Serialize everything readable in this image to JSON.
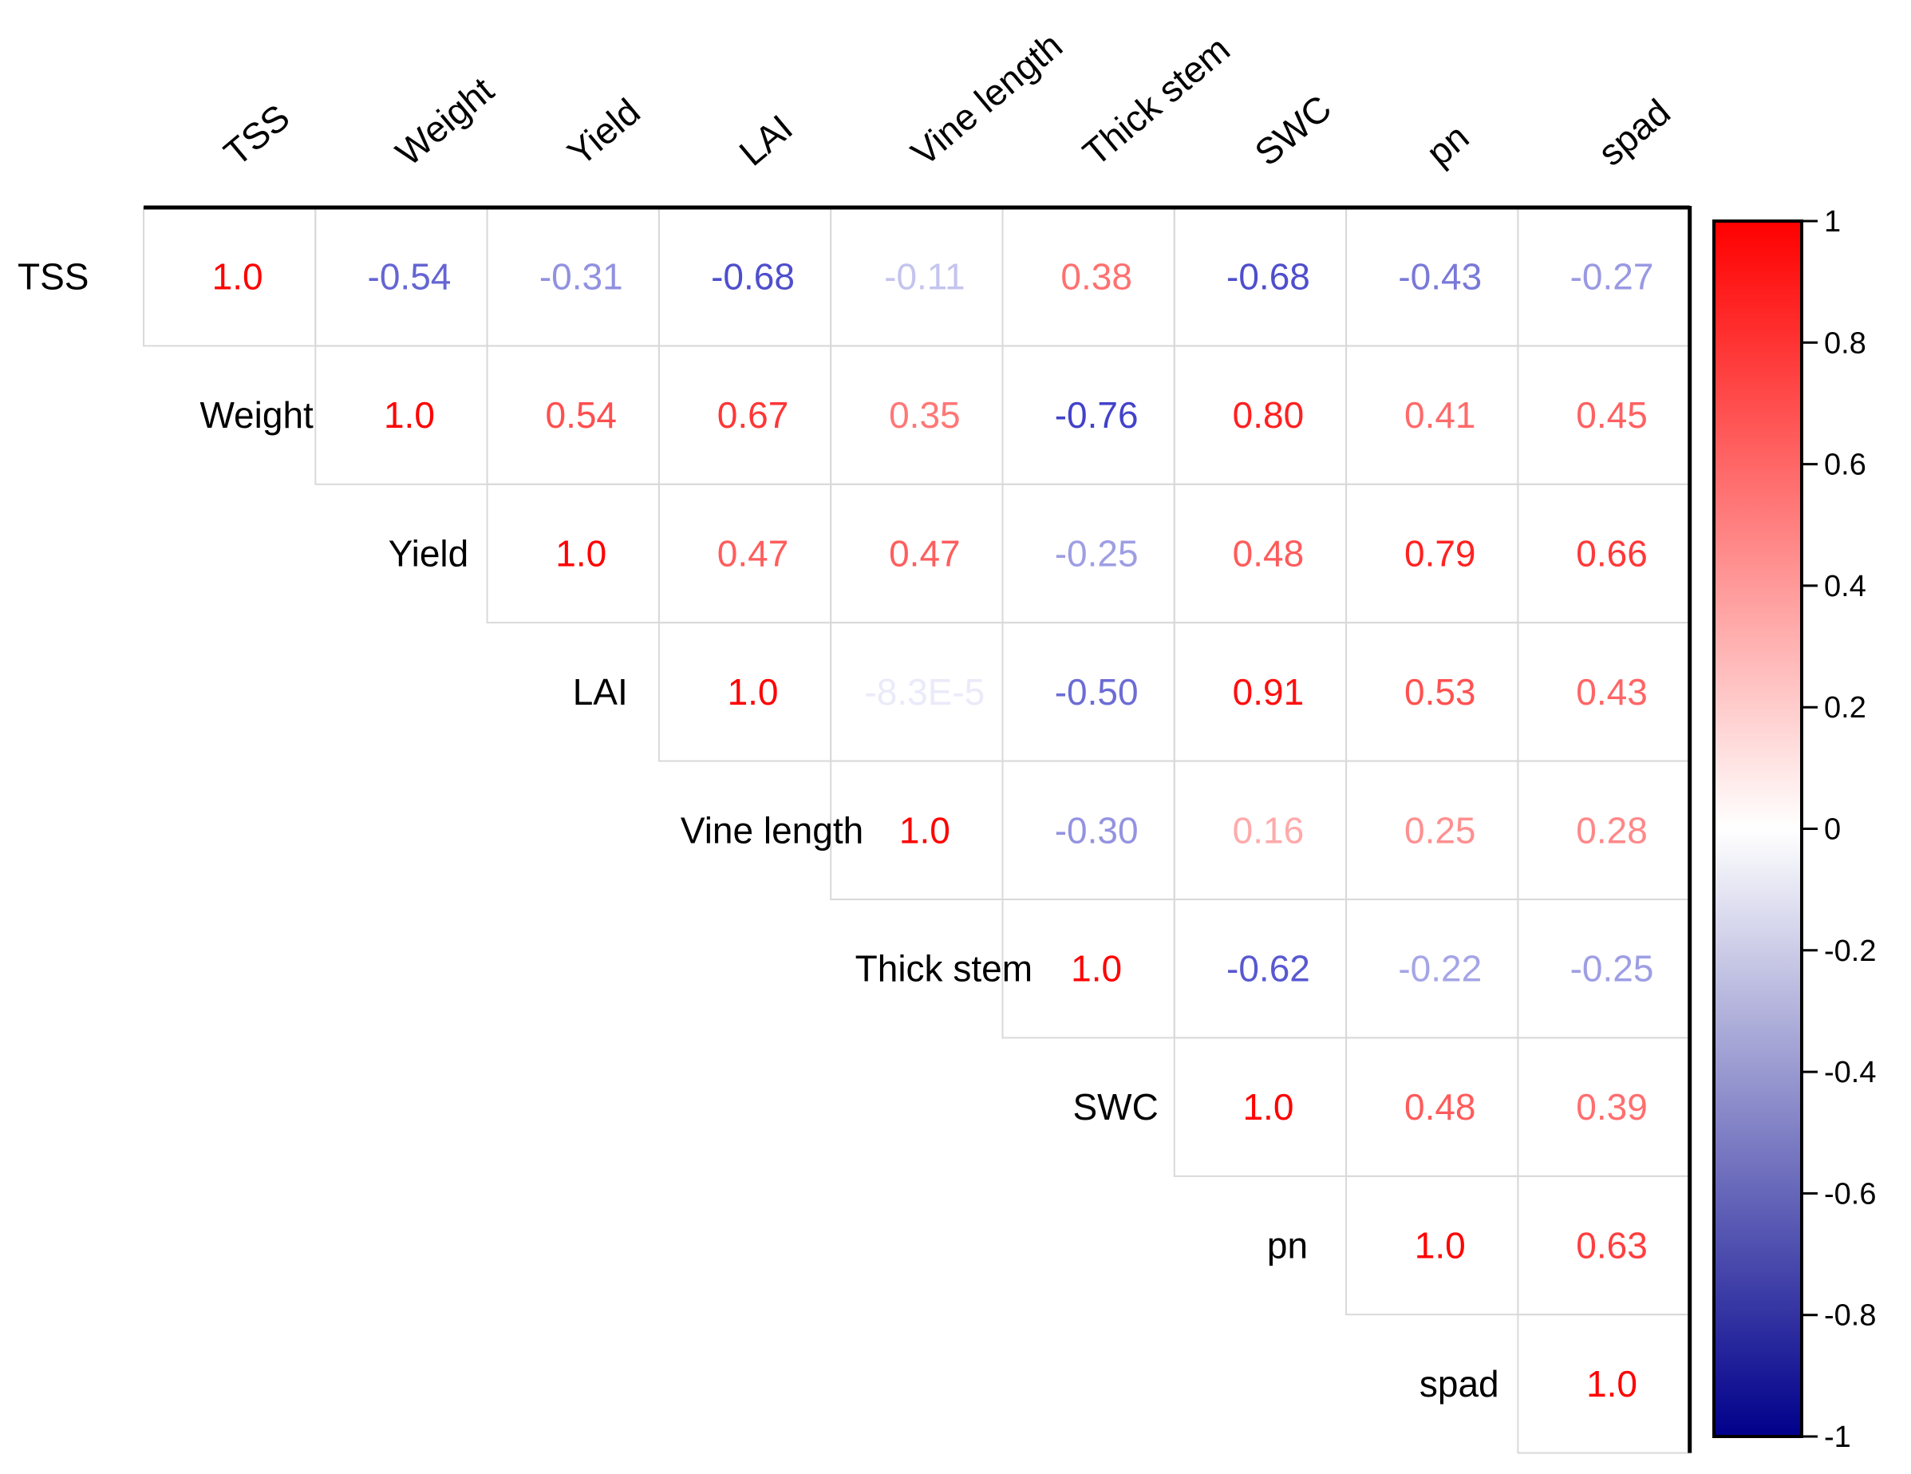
{
  "chart_data": {
    "type": "heatmap",
    "subtype": "correlation-matrix-upper-triangle",
    "variables": [
      "TSS",
      "Weight",
      "Yield",
      "LAI",
      "Vine length",
      "Thick stem",
      "SWC",
      "pn",
      "spad"
    ],
    "matrix": [
      [
        1.0,
        -0.54,
        -0.31,
        -0.68,
        -0.11,
        0.38,
        -0.68,
        -0.43,
        -0.27
      ],
      [
        null,
        1.0,
        0.54,
        0.67,
        0.35,
        -0.76,
        0.8,
        0.41,
        0.45
      ],
      [
        null,
        null,
        1.0,
        0.47,
        0.47,
        -0.25,
        0.48,
        0.79,
        0.66
      ],
      [
        null,
        null,
        null,
        1.0,
        -8.3e-05,
        -0.5,
        0.91,
        0.53,
        0.43
      ],
      [
        null,
        null,
        null,
        null,
        1.0,
        -0.3,
        0.16,
        0.25,
        0.28
      ],
      [
        null,
        null,
        null,
        null,
        null,
        1.0,
        -0.62,
        -0.22,
        -0.25
      ],
      [
        null,
        null,
        null,
        null,
        null,
        null,
        1.0,
        0.48,
        0.39
      ],
      [
        null,
        null,
        null,
        null,
        null,
        null,
        null,
        1.0,
        0.63
      ],
      [
        null,
        null,
        null,
        null,
        null,
        null,
        null,
        null,
        1.0
      ]
    ],
    "labels": [
      [
        "1.0",
        "-0.54",
        "-0.31",
        "-0.68",
        "-0.11",
        "0.38",
        "-0.68",
        "-0.43",
        "-0.27"
      ],
      [
        null,
        "1.0",
        "0.54",
        "0.67",
        "0.35",
        "-0.76",
        "0.80",
        "0.41",
        "0.45"
      ],
      [
        null,
        null,
        "1.0",
        "0.47",
        "0.47",
        "-0.25",
        "0.48",
        "0.79",
        "0.66"
      ],
      [
        null,
        null,
        null,
        "1.0",
        "-8.3E-5",
        "-0.50",
        "0.91",
        "0.53",
        "0.43"
      ],
      [
        null,
        null,
        null,
        null,
        "1.0",
        "-0.30",
        "0.16",
        "0.25",
        "0.28"
      ],
      [
        null,
        null,
        null,
        null,
        null,
        "1.0",
        "-0.62",
        "-0.22",
        "-0.25"
      ],
      [
        null,
        null,
        null,
        null,
        null,
        null,
        "1.0",
        "0.48",
        "0.39"
      ],
      [
        null,
        null,
        null,
        null,
        null,
        null,
        null,
        "1.0",
        "0.63"
      ],
      [
        null,
        null,
        null,
        null,
        null,
        null,
        null,
        null,
        "1.0"
      ]
    ],
    "colorbar": {
      "range": [
        -1,
        1
      ],
      "ticks": [
        1,
        0.8,
        0.6,
        0.4,
        0.2,
        0,
        -0.2,
        -0.4,
        -0.6,
        -0.8,
        -1
      ],
      "tick_labels": [
        "1",
        "0.8",
        "0.6",
        "0.4",
        "0.2",
        "0",
        "-0.2",
        "-0.4",
        "-0.6",
        "-0.8",
        "-1"
      ],
      "color_high": "#ff0000",
      "color_mid": "#ffffff",
      "color_low": "#00008b"
    },
    "colors": {
      "text_positive": "#ff0000",
      "text_negative": "#2020c0",
      "grid": "#d9d9d9",
      "axis": "#000000"
    }
  }
}
